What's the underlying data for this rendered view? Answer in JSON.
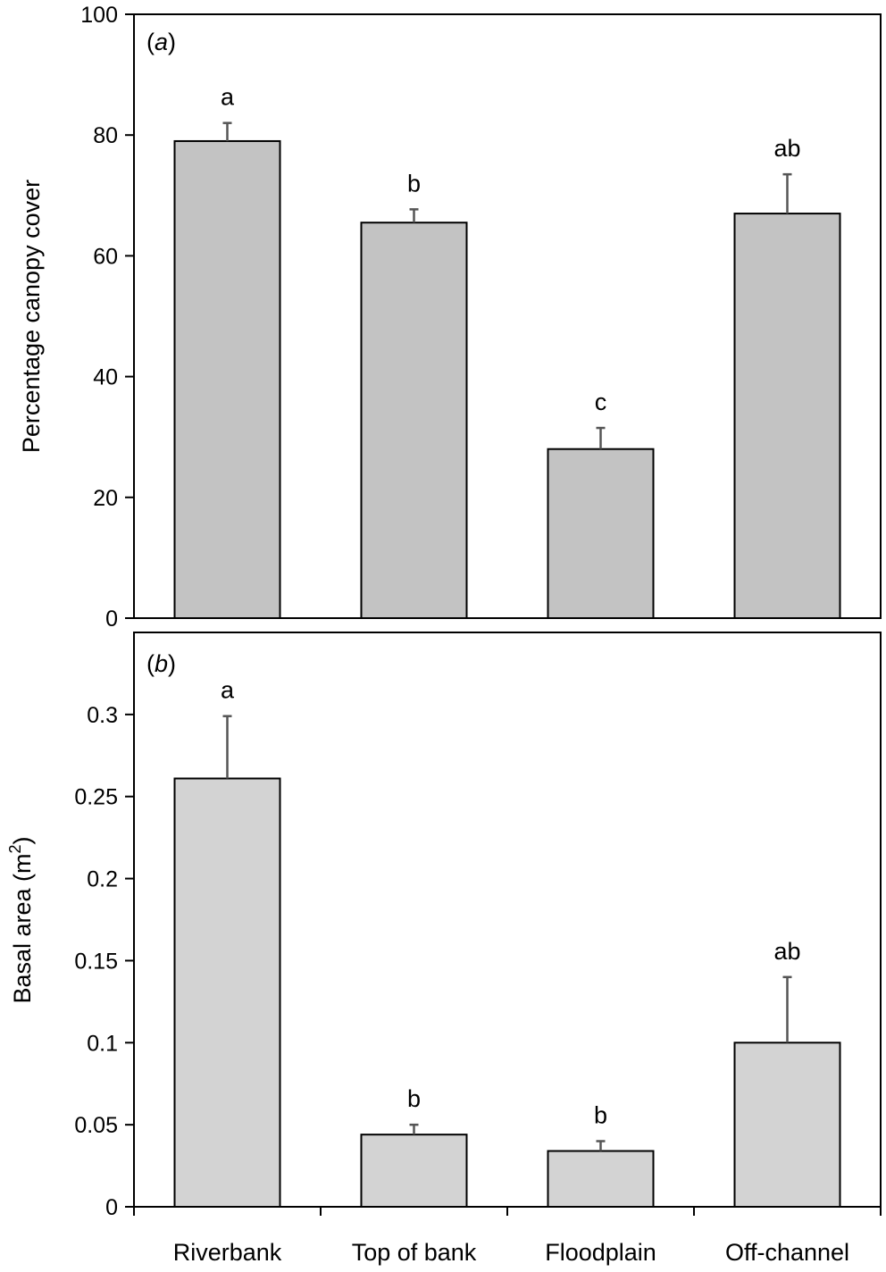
{
  "chart_data": [
    {
      "type": "bar",
      "panel_label": "a",
      "ylabel": "Percentage canopy cover",
      "ylim": [
        0,
        100
      ],
      "yticks": [
        "0",
        "20",
        "40",
        "60",
        "80",
        "100"
      ],
      "categories": [
        "Riverbank",
        "Top of bank",
        "Floodplain",
        "Off-channel"
      ],
      "values": [
        79,
        65.5,
        28,
        67
      ],
      "errors": [
        3,
        2.2,
        3.5,
        6.5
      ],
      "significance": [
        "a",
        "b",
        "c",
        "ab"
      ],
      "bar_color": "#c3c3c3",
      "grid": false
    },
    {
      "type": "bar",
      "panel_label": "b",
      "ylabel": "Basal area (m",
      "ylabel_superscript": "2",
      "ylabel_close": ")",
      "ylim": [
        0,
        0.35
      ],
      "yticks": [
        "0",
        "0.05",
        "0.1",
        "0.15",
        "0.2",
        "0.25",
        "0.3"
      ],
      "categories": [
        "Riverbank",
        "Top of bank",
        "Floodplain",
        "Off-channel"
      ],
      "values": [
        0.261,
        0.044,
        0.034,
        0.1
      ],
      "errors": [
        0.038,
        0.006,
        0.006,
        0.04
      ],
      "significance": [
        "a",
        "b",
        "b",
        "ab"
      ],
      "bar_color": "#d3d3d3",
      "grid": false
    }
  ],
  "x_axis": {
    "categories": [
      "Riverbank",
      "Top of bank",
      "Floodplain",
      "Off-channel"
    ]
  }
}
